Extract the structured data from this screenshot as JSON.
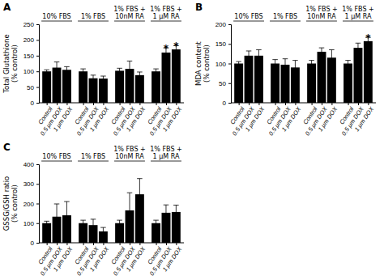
{
  "chart_data": [
    {
      "type": "bar",
      "title": "A",
      "ylabel": "Total Glutathione\n(% control)",
      "categories": [
        "10% FBS",
        "1% FBS",
        "1% FBS +\n10nM RA",
        "1% FBS +\n1 μM RA"
      ],
      "series": [
        {
          "name": "Control",
          "values": [
            100,
            100,
            102,
            100
          ],
          "errors": [
            5,
            8,
            8,
            8
          ]
        },
        {
          "name": "0.5 μm DOX",
          "values": [
            112,
            78,
            108,
            160
          ],
          "errors": [
            18,
            10,
            25,
            15
          ]
        },
        {
          "name": "1 μm DOX",
          "values": [
            105,
            77,
            88,
            170
          ],
          "errors": [
            10,
            8,
            10,
            12
          ]
        }
      ],
      "color": "#000000",
      "ylim": [
        0,
        250
      ],
      "yticks": [
        0,
        50,
        100,
        150,
        200,
        250
      ],
      "grid": false,
      "annotations": [
        {
          "text": "*",
          "x": "1% FBS +\n1 μM RA",
          "series": "0.5 μm DOX"
        },
        {
          "text": "*",
          "x": "1% FBS +\n1 μM RA",
          "series": "1 μm DOX"
        }
      ]
    },
    {
      "type": "bar",
      "title": "B",
      "ylabel": "MDA content\n(% control)",
      "categories": [
        "10% FBS",
        "1% FBS",
        "1% FBS +\n10nM RA",
        "1% FBS +\n1 μM RA"
      ],
      "series": [
        {
          "name": "Control",
          "values": [
            100,
            100,
            100,
            100
          ],
          "errors": [
            5,
            10,
            8,
            8
          ]
        },
        {
          "name": "0.5 μm DOX",
          "values": [
            120,
            97,
            130,
            140
          ],
          "errors": [
            12,
            15,
            10,
            12
          ]
        },
        {
          "name": "1 μm DOX",
          "values": [
            120,
            90,
            115,
            157
          ],
          "errors": [
            15,
            18,
            20,
            10
          ]
        }
      ],
      "color": "#000000",
      "ylim": [
        0,
        200
      ],
      "yticks": [
        0,
        50,
        100,
        150,
        200
      ],
      "grid": false,
      "annotations": [
        {
          "text": "*",
          "x": "1% FBS +\n1 μM RA",
          "series": "1 μm DOX"
        }
      ]
    },
    {
      "type": "bar",
      "title": "C",
      "ylabel": "GSSG/GSH ratio\n(% control)",
      "categories": [
        "10% FBS",
        "1% FBS",
        "1% FBS +\n10nM RA",
        "1% FBS +\n1 μM RA"
      ],
      "series": [
        {
          "name": "Control",
          "values": [
            100,
            100,
            100,
            100
          ],
          "errors": [
            10,
            15,
            15,
            15
          ]
        },
        {
          "name": "0.5 μm DOX",
          "values": [
            133,
            90,
            165,
            153
          ],
          "errors": [
            65,
            30,
            90,
            40
          ]
        },
        {
          "name": "1 μm DOX",
          "values": [
            140,
            58,
            247,
            157
          ],
          "errors": [
            70,
            20,
            80,
            35
          ]
        }
      ],
      "color": "#000000",
      "ylim": [
        0,
        400
      ],
      "yticks": [
        0,
        100,
        200,
        300,
        400
      ],
      "grid": false
    }
  ]
}
